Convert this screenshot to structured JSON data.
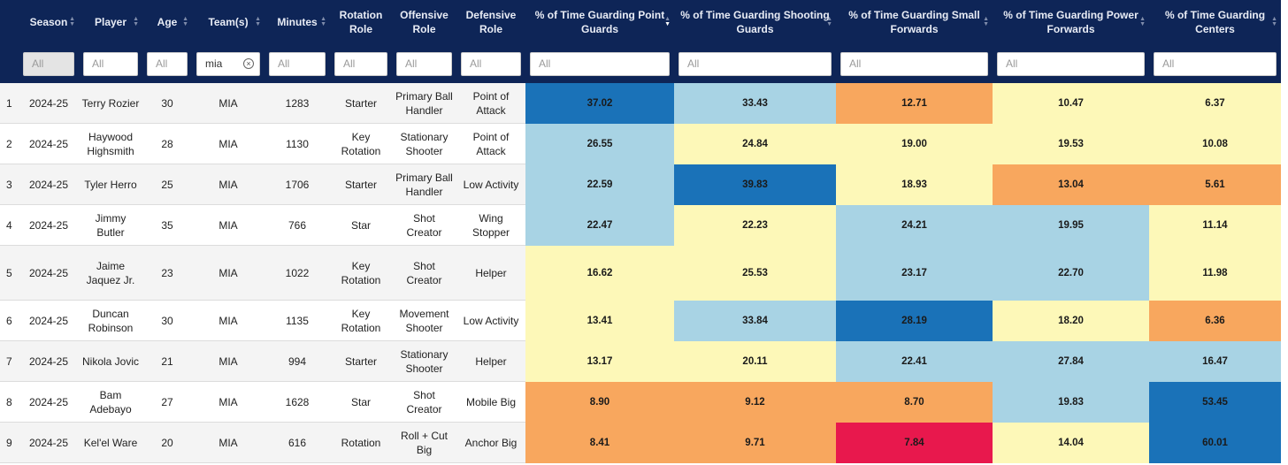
{
  "columns": [
    {
      "label": ""
    },
    {
      "label": "Season"
    },
    {
      "label": "Player"
    },
    {
      "label": "Age"
    },
    {
      "label": "Team(s)"
    },
    {
      "label": "Minutes"
    },
    {
      "label": "Rotation Role"
    },
    {
      "label": "Offensive Role"
    },
    {
      "label": "Defensive Role"
    },
    {
      "label": "% of Time Guarding Point Guards"
    },
    {
      "label": "% of Time Guarding Shooting Guards"
    },
    {
      "label": "% of Time Guarding Small Forwards"
    },
    {
      "label": "% of Time Guarding Power Forwards"
    },
    {
      "label": "% of Time Guarding Centers"
    }
  ],
  "filters": {
    "placeholder": "All",
    "season": "All",
    "team_value": "mia"
  },
  "colors": {
    "header_bg": "#0e2557",
    "dark_blue": "#1a72b8",
    "light_blue": "#a8d3e4",
    "yellow": "#fdf8b8",
    "orange": "#f8a75e",
    "red": "#e8184d"
  },
  "rows": [
    {
      "rank": "1",
      "season": "2024-25",
      "player": "Terry Rozier",
      "age": "30",
      "team": "MIA",
      "minutes": "1283",
      "rotation": "Starter",
      "offense": "Primary Ball Handler",
      "defense": "Point of Attack",
      "pct": [
        "37.02",
        "33.43",
        "12.71",
        "10.47",
        "6.37"
      ],
      "colors": [
        "dark_blue",
        "light_blue",
        "orange",
        "yellow",
        "yellow"
      ]
    },
    {
      "rank": "2",
      "season": "2024-25",
      "player": "Haywood Highsmith",
      "age": "28",
      "team": "MIA",
      "minutes": "1130",
      "rotation": "Key Rotation",
      "offense": "Stationary Shooter",
      "defense": "Point of Attack",
      "pct": [
        "26.55",
        "24.84",
        "19.00",
        "19.53",
        "10.08"
      ],
      "colors": [
        "light_blue",
        "yellow",
        "yellow",
        "yellow",
        "yellow"
      ]
    },
    {
      "rank": "3",
      "season": "2024-25",
      "player": "Tyler Herro",
      "age": "25",
      "team": "MIA",
      "minutes": "1706",
      "rotation": "Starter",
      "offense": "Primary Ball Handler",
      "defense": "Low Activity",
      "pct": [
        "22.59",
        "39.83",
        "18.93",
        "13.04",
        "5.61"
      ],
      "colors": [
        "light_blue",
        "dark_blue",
        "yellow",
        "orange",
        "orange"
      ]
    },
    {
      "rank": "4",
      "season": "2024-25",
      "player": "Jimmy Butler",
      "age": "35",
      "team": "MIA",
      "minutes": "766",
      "rotation": "Star",
      "offense": "Shot Creator",
      "defense": "Wing Stopper",
      "pct": [
        "22.47",
        "22.23",
        "24.21",
        "19.95",
        "11.14"
      ],
      "colors": [
        "light_blue",
        "yellow",
        "light_blue",
        "light_blue",
        "yellow"
      ]
    },
    {
      "rank": "5",
      "season": "2024-25",
      "player": "Jaime Jaquez Jr.",
      "age": "23",
      "team": "MIA",
      "minutes": "1022",
      "rotation": "Key Rotation",
      "offense": "Shot Creator",
      "defense": "Helper",
      "pct": [
        "16.62",
        "25.53",
        "23.17",
        "22.70",
        "11.98"
      ],
      "colors": [
        "yellow",
        "yellow",
        "light_blue",
        "light_blue",
        "yellow"
      ]
    },
    {
      "rank": "6",
      "season": "2024-25",
      "player": "Duncan Robinson",
      "age": "30",
      "team": "MIA",
      "minutes": "1135",
      "rotation": "Key Rotation",
      "offense": "Movement Shooter",
      "defense": "Low Activity",
      "pct": [
        "13.41",
        "33.84",
        "28.19",
        "18.20",
        "6.36"
      ],
      "colors": [
        "yellow",
        "light_blue",
        "dark_blue",
        "yellow",
        "orange"
      ]
    },
    {
      "rank": "7",
      "season": "2024-25",
      "player": "Nikola Jovic",
      "age": "21",
      "team": "MIA",
      "minutes": "994",
      "rotation": "Starter",
      "offense": "Stationary Shooter",
      "defense": "Helper",
      "pct": [
        "13.17",
        "20.11",
        "22.41",
        "27.84",
        "16.47"
      ],
      "colors": [
        "yellow",
        "yellow",
        "light_blue",
        "light_blue",
        "light_blue"
      ]
    },
    {
      "rank": "8",
      "season": "2024-25",
      "player": "Bam Adebayo",
      "age": "27",
      "team": "MIA",
      "minutes": "1628",
      "rotation": "Star",
      "offense": "Shot Creator",
      "defense": "Mobile Big",
      "pct": [
        "8.90",
        "9.12",
        "8.70",
        "19.83",
        "53.45"
      ],
      "colors": [
        "orange",
        "orange",
        "orange",
        "light_blue",
        "dark_blue"
      ]
    },
    {
      "rank": "9",
      "season": "2024-25",
      "player": "Kel'el Ware",
      "age": "20",
      "team": "MIA",
      "minutes": "616",
      "rotation": "Rotation",
      "offense": "Roll + Cut Big",
      "defense": "Anchor Big",
      "pct": [
        "8.41",
        "9.71",
        "7.84",
        "14.04",
        "60.01"
      ],
      "colors": [
        "orange",
        "orange",
        "red",
        "yellow",
        "dark_blue"
      ]
    }
  ]
}
